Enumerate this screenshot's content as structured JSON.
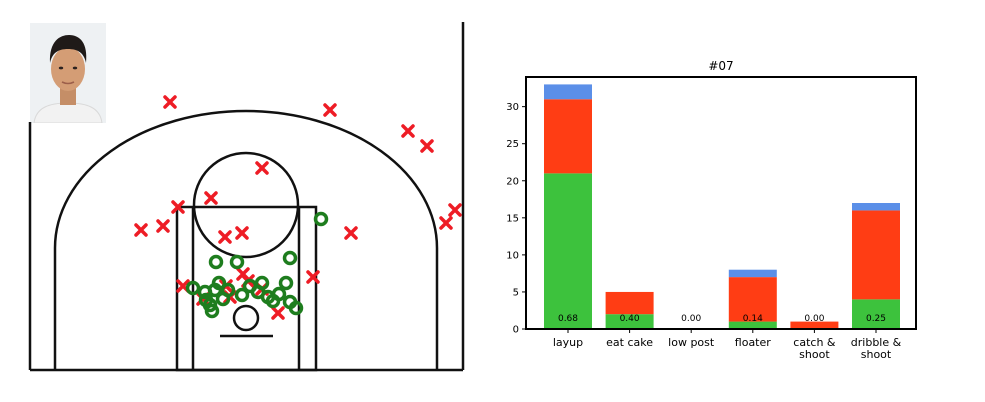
{
  "player_photo": {
    "icon": "player-headshot"
  },
  "colors": {
    "made": "#1e7d1e",
    "missed": "#ee1c25",
    "bar_green": "#3dc23d",
    "bar_red": "#ff3d14",
    "bar_blue": "#5b8fe8"
  },
  "shot_chart": {
    "made": [
      [
        321,
        219
      ],
      [
        290,
        258
      ],
      [
        216,
        262
      ],
      [
        237,
        262
      ],
      [
        286,
        283
      ],
      [
        219,
        283
      ],
      [
        262,
        283
      ],
      [
        193,
        288
      ],
      [
        205,
        292
      ],
      [
        215,
        290
      ],
      [
        228,
        290
      ],
      [
        242,
        295
      ],
      [
        258,
        292
      ],
      [
        268,
        297
      ],
      [
        279,
        294
      ],
      [
        290,
        302
      ],
      [
        296,
        308
      ],
      [
        210,
        305
      ],
      [
        212,
        311
      ],
      [
        206,
        300
      ],
      [
        223,
        299
      ],
      [
        273,
        301
      ],
      [
        250,
        286
      ]
    ],
    "missed": [
      [
        170,
        102
      ],
      [
        330,
        110
      ],
      [
        408,
        131
      ],
      [
        427,
        146
      ],
      [
        262,
        168
      ],
      [
        455,
        210
      ],
      [
        446,
        223
      ],
      [
        178,
        207
      ],
      [
        211,
        198
      ],
      [
        141,
        230
      ],
      [
        163,
        226
      ],
      [
        225,
        237
      ],
      [
        242,
        233
      ],
      [
        351,
        233
      ],
      [
        243,
        274
      ],
      [
        313,
        277
      ],
      [
        183,
        286
      ],
      [
        226,
        286
      ],
      [
        262,
        289
      ],
      [
        230,
        297
      ],
      [
        278,
        313
      ],
      [
        248,
        281
      ],
      [
        203,
        299
      ]
    ]
  },
  "chart_data": {
    "type": "bar",
    "stacked": true,
    "title": "#07",
    "xlabel": "",
    "ylabel": "",
    "ylim": [
      0,
      34
    ],
    "yticks": [
      0,
      5,
      10,
      15,
      20,
      25,
      30
    ],
    "categories": [
      [
        "layup"
      ],
      [
        "eat cake"
      ],
      [
        "low post"
      ],
      [
        "floater"
      ],
      [
        "catch &",
        "shoot"
      ],
      [
        "dribble &",
        "shoot"
      ]
    ],
    "series": [
      {
        "color_key": "bar_green",
        "values": [
          21,
          2,
          0,
          1,
          0,
          4
        ]
      },
      {
        "color_key": "bar_red",
        "values": [
          10,
          3,
          0,
          6,
          1,
          12
        ]
      },
      {
        "color_key": "bar_blue",
        "values": [
          2,
          0,
          0,
          1,
          0,
          1
        ]
      }
    ],
    "data_labels": [
      "0.68",
      "0.40",
      "0.00",
      "0.14",
      "0.00",
      "0.25"
    ]
  }
}
